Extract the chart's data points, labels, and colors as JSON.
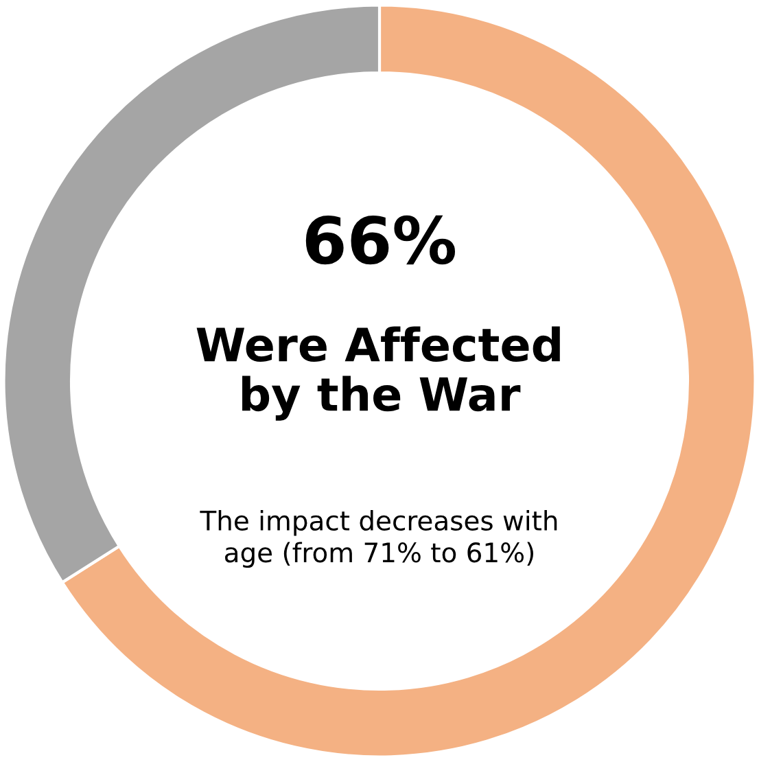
{
  "chart_data": {
    "type": "donut",
    "categories": [
      null,
      null
    ],
    "values": [
      66,
      34
    ],
    "colors": [
      "#f4b183",
      "#a5a5a5"
    ],
    "annotations": [
      "66%",
      "Were Affected\nby the War",
      "The impact decreases with\nage (from 71% to 61%)"
    ]
  }
}
